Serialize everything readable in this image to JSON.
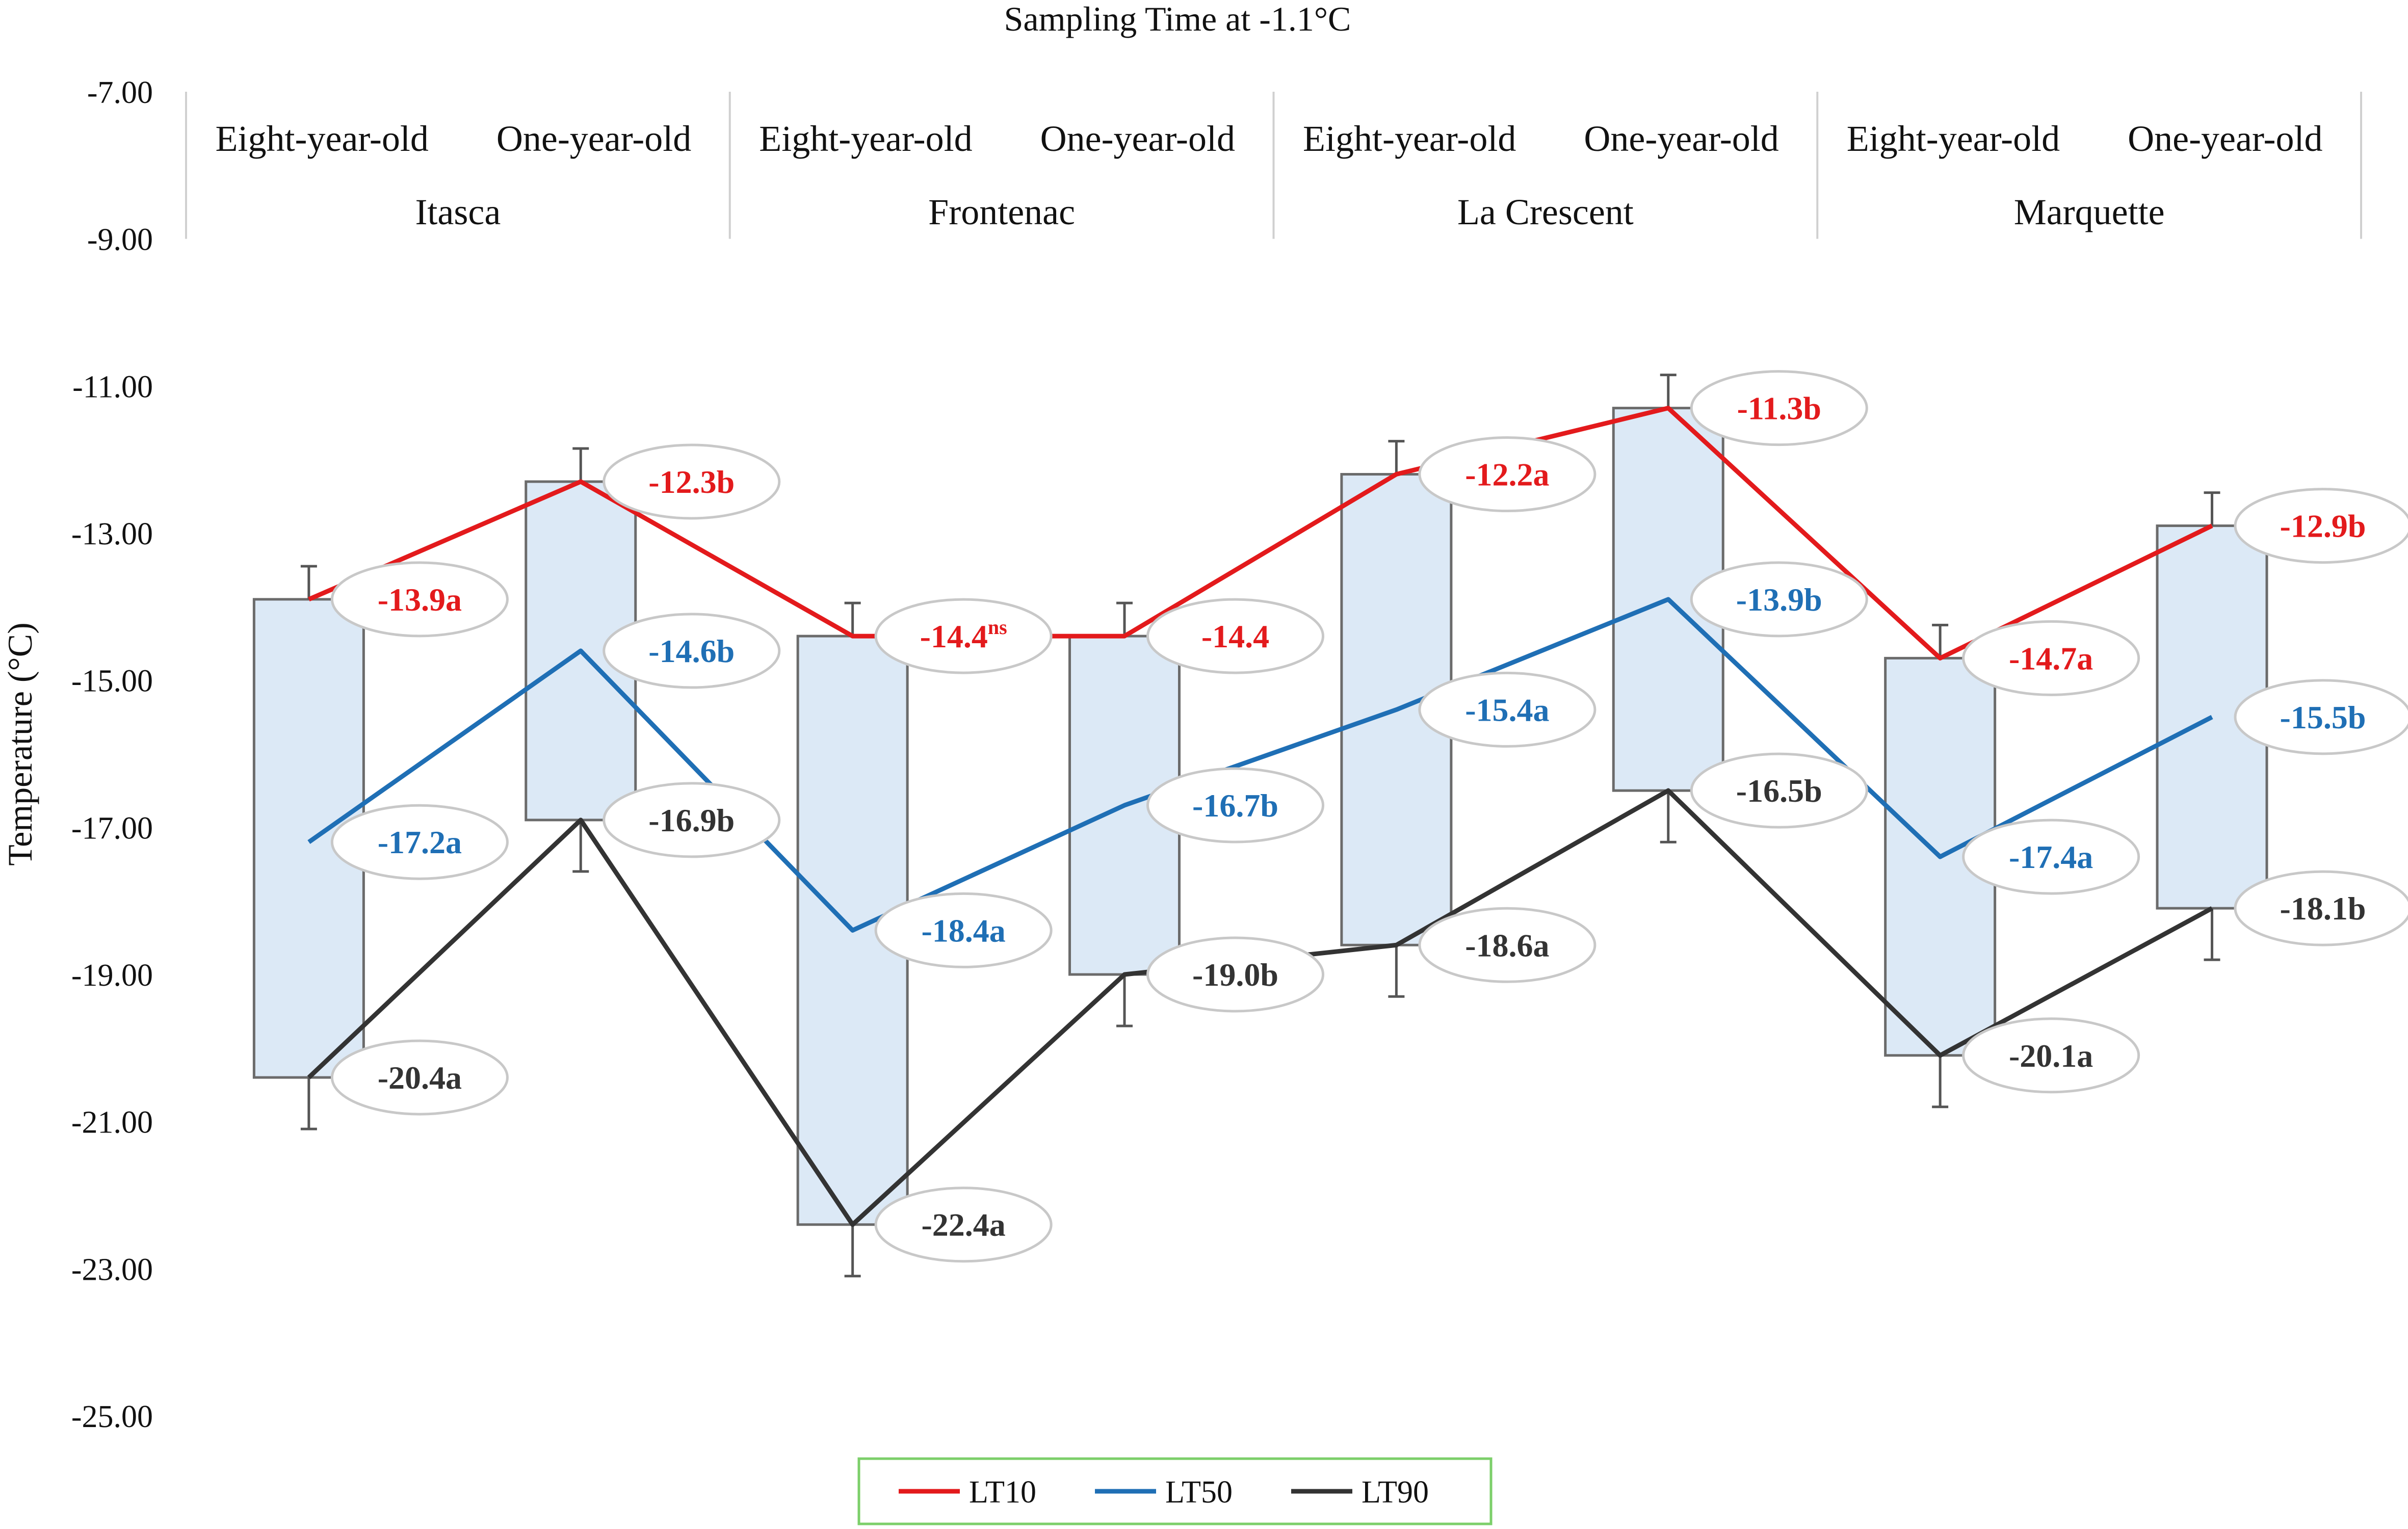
{
  "chart_data": {
    "type": "line",
    "title": "Sampling Time at -1.1°C",
    "ylabel": "Temperature (°C)",
    "xlabel": "",
    "ylim": [
      -25,
      -7
    ],
    "yticks": [
      "-7.00",
      "-9.00",
      "-11.00",
      "-13.00",
      "-15.00",
      "-17.00",
      "-19.00",
      "-21.00",
      "-23.00",
      "-25.00"
    ],
    "cultivars": [
      "Itasca",
      "Frontenac",
      "La Crescent",
      "Marquette"
    ],
    "categories": [
      "Eight-year-old",
      "One-year-old",
      "Eight-year-old",
      "One-year-old",
      "Eight-year-old",
      "One-year-old",
      "Eight-year-old",
      "One-year-old"
    ],
    "series": [
      {
        "name": "LT10",
        "color": "#e31a1c",
        "values": [
          -13.9,
          -12.3,
          -14.4,
          -14.4,
          -12.2,
          -11.3,
          -14.7,
          -12.9
        ],
        "labels": [
          "-13.9a",
          "-12.3b",
          "-14.4",
          "-14.4",
          "-12.2a",
          "-11.3b",
          "-14.7a",
          "-12.9b"
        ],
        "label_sup": [
          "",
          "",
          "ns",
          "",
          "",
          "",
          "",
          ""
        ],
        "error": [
          0.45,
          0.45,
          0.45,
          0.45,
          0.45,
          0.45,
          0.45,
          0.45
        ]
      },
      {
        "name": "LT50",
        "color": "#1f6fb5",
        "values": [
          -17.2,
          -14.6,
          -18.4,
          -16.7,
          -15.4,
          -13.9,
          -17.4,
          -15.5
        ],
        "labels": [
          "-17.2a",
          "-14.6b",
          "-18.4a",
          "-16.7b",
          "-15.4a",
          "-13.9b",
          "-17.4a",
          "-15.5b"
        ],
        "label_sup": [
          "",
          "",
          "",
          "",
          "",
          "",
          "",
          ""
        ]
      },
      {
        "name": "LT90",
        "color": "#333333",
        "values": [
          -20.4,
          -16.9,
          -22.4,
          -19.0,
          -18.6,
          -16.5,
          -20.1,
          -18.1
        ],
        "labels": [
          "-20.4a",
          "-16.9b",
          "-22.4a",
          "-19.0b",
          "-18.6a",
          "-16.5b",
          "-20.1a",
          "-18.1b"
        ],
        "label_sup": [
          "",
          "",
          "",
          "",
          "",
          "",
          "",
          ""
        ],
        "error": [
          0.7,
          0.7,
          0.7,
          0.7,
          0.7,
          0.7,
          0.7,
          0.7
        ]
      }
    ],
    "legend": [
      "LT10",
      "LT50",
      "LT90"
    ],
    "legend_position": "bottom-center",
    "box_fill": "#dce9f6",
    "box_stroke": "#6b6b6b",
    "grid": false
  }
}
